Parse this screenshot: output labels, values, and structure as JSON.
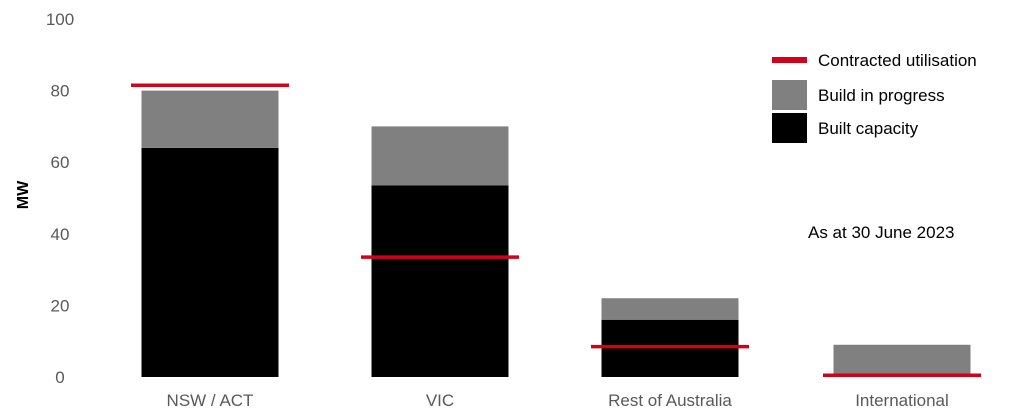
{
  "chart_data": {
    "type": "bar",
    "stacked": true,
    "categories": [
      "NSW / ACT",
      "VIC",
      "Rest of Australia",
      "International"
    ],
    "series": [
      {
        "name": "Built capacity",
        "color": "#000000",
        "values": [
          64,
          53.5,
          16,
          0
        ]
      },
      {
        "name": "Build in progress",
        "color": "#808080",
        "values": [
          16,
          16.5,
          6,
          9
        ]
      }
    ],
    "markers": {
      "name": "Contracted utilisation",
      "color": "#d0021b",
      "values": [
        81.5,
        33.5,
        8.5,
        0.5
      ]
    },
    "ylabel": "MW",
    "ylim": [
      0,
      100
    ],
    "yticks": [
      0,
      20,
      40,
      60,
      80,
      100
    ],
    "legend_position": "top-right",
    "annotation": "As at 30 June 2023",
    "grid": false
  }
}
